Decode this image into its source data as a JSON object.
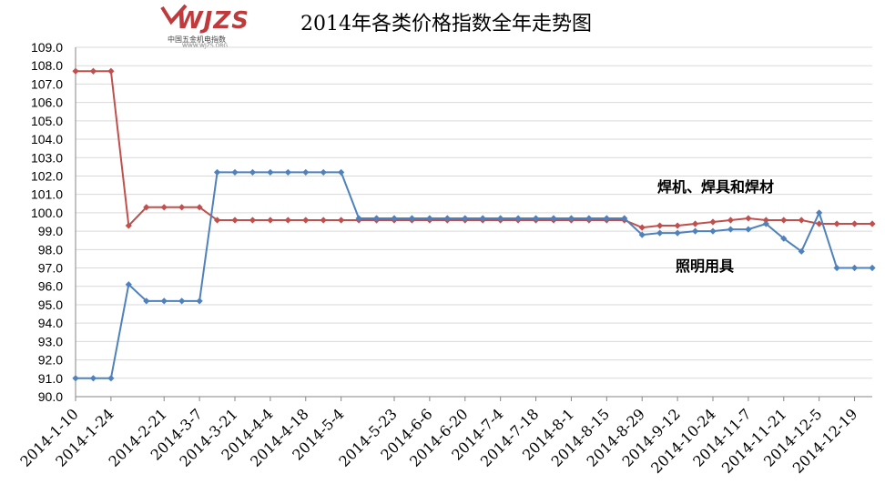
{
  "logo": {
    "wordmark": "WJZS",
    "tagline": "中国五金机电指数",
    "url": "WWW.WJZS.ORG"
  },
  "chart_data": {
    "type": "line",
    "title": "2014年各类价格指数全年走势图",
    "xlabel": "",
    "ylabel": "",
    "ylim": [
      90.0,
      109.0
    ],
    "ytick_step": 1.0,
    "grid": true,
    "x": [
      "2014-1-10",
      "2014-1-17",
      "2014-1-24",
      "2014-1-31",
      "2014-2-14",
      "2014-2-21",
      "2014-2-28",
      "2014-3-7",
      "2014-3-14",
      "2014-3-21",
      "2014-3-28",
      "2014-4-4",
      "2014-4-11",
      "2014-4-18",
      "2014-4-25",
      "2014-5-4",
      "2014-5-9",
      "2014-5-16",
      "2014-5-23",
      "2014-5-30",
      "2014-6-6",
      "2014-6-13",
      "2014-6-20",
      "2014-6-27",
      "2014-7-4",
      "2014-7-11",
      "2014-7-18",
      "2014-7-25",
      "2014-8-1",
      "2014-8-8",
      "2014-8-15",
      "2014-8-22",
      "2014-8-29",
      "2014-9-5",
      "2014-9-12",
      "2014-9-19",
      "2014-10-24",
      "2014-10-31",
      "2014-11-7",
      "2014-11-14",
      "2014-11-21",
      "2014-11-28",
      "2014-12-5",
      "2014-12-12",
      "2014-12-19",
      "2014-12-26"
    ],
    "xtick_labels": [
      "2014-1-10",
      "2014-1-24",
      "2014-2-21",
      "2014-3-7",
      "2014-3-21",
      "2014-4-4",
      "2014-4-18",
      "2014-5-4",
      "2014-5-23",
      "2014-6-6",
      "2014-6-20",
      "2014-7-4",
      "2014-7-18",
      "2014-8-1",
      "2014-8-15",
      "2014-8-29",
      "2014-9-12",
      "2014-10-24",
      "2014-11-7",
      "2014-11-21",
      "2014-12-5",
      "2014-12-19"
    ],
    "series": [
      {
        "name": "焊机、焊具和焊材",
        "color": "#c0504d",
        "values": [
          107.7,
          107.7,
          107.7,
          99.3,
          100.3,
          100.3,
          100.3,
          100.3,
          99.6,
          99.6,
          99.6,
          99.6,
          99.6,
          99.6,
          99.6,
          99.6,
          99.6,
          99.6,
          99.6,
          99.6,
          99.6,
          99.6,
          99.6,
          99.6,
          99.6,
          99.6,
          99.6,
          99.6,
          99.6,
          99.6,
          99.6,
          99.6,
          99.2,
          99.3,
          99.3,
          99.4,
          99.5,
          99.6,
          99.7,
          99.6,
          99.6,
          99.6,
          99.4,
          99.4,
          99.4,
          99.4
        ]
      },
      {
        "name": "照明用具",
        "color": "#4f81bd",
        "values": [
          91.0,
          91.0,
          91.0,
          96.1,
          95.2,
          95.2,
          95.2,
          95.2,
          102.2,
          102.2,
          102.2,
          102.2,
          102.2,
          102.2,
          102.2,
          102.2,
          99.7,
          99.7,
          99.7,
          99.7,
          99.7,
          99.7,
          99.7,
          99.7,
          99.7,
          99.7,
          99.7,
          99.7,
          99.7,
          99.7,
          99.7,
          99.7,
          98.8,
          98.9,
          98.9,
          99.0,
          99.0,
          99.1,
          99.1,
          99.4,
          98.6,
          97.9,
          100.0,
          97.0,
          97.0,
          97.0
        ]
      }
    ]
  }
}
